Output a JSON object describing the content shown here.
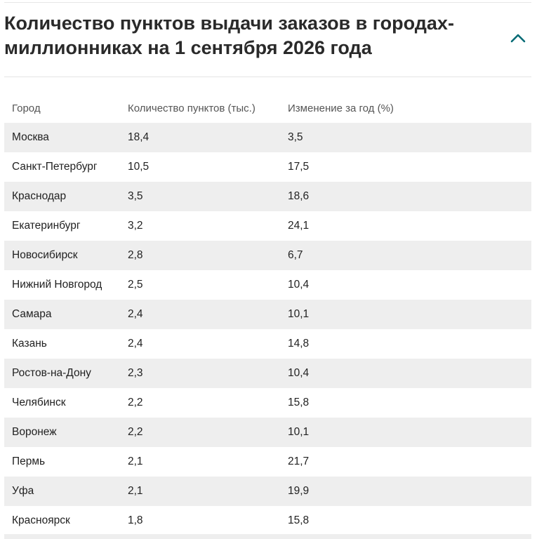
{
  "header": {
    "title": "Количество пунктов выдачи заказов в городах-миллионниках на 1 сентября 2026 года",
    "toggle_icon": "chevron-up-icon"
  },
  "table": {
    "columns": [
      "Город",
      "Количество пунктов (тыс.)",
      "Изменение за год (%)"
    ],
    "rows": [
      [
        "Москва",
        "18,4",
        "3,5"
      ],
      [
        "Санкт-Петербург",
        "10,5",
        "17,5"
      ],
      [
        "Краснодар",
        "3,5",
        "18,6"
      ],
      [
        "Екатеринбург",
        "3,2",
        "24,1"
      ],
      [
        "Новосибирск",
        "2,8",
        "6,7"
      ],
      [
        "Нижний Новгород",
        "2,5",
        "10,4"
      ],
      [
        "Самара",
        "2,4",
        "10,1"
      ],
      [
        "Казань",
        "2,4",
        "14,8"
      ],
      [
        "Ростов-на-Дону",
        "2,3",
        "10,4"
      ],
      [
        "Челябинск",
        "2,2",
        "15,8"
      ],
      [
        "Воронеж",
        "2,2",
        "10,1"
      ],
      [
        "Пермь",
        "2,1",
        "21,7"
      ],
      [
        "Уфа",
        "2,1",
        "19,9"
      ],
      [
        "Красноярск",
        "1,8",
        "15,8"
      ]
    ]
  },
  "colors": {
    "stripe": "#eeeeee",
    "accent": "#006b75",
    "text": "#222222",
    "header_text": "#555555"
  }
}
